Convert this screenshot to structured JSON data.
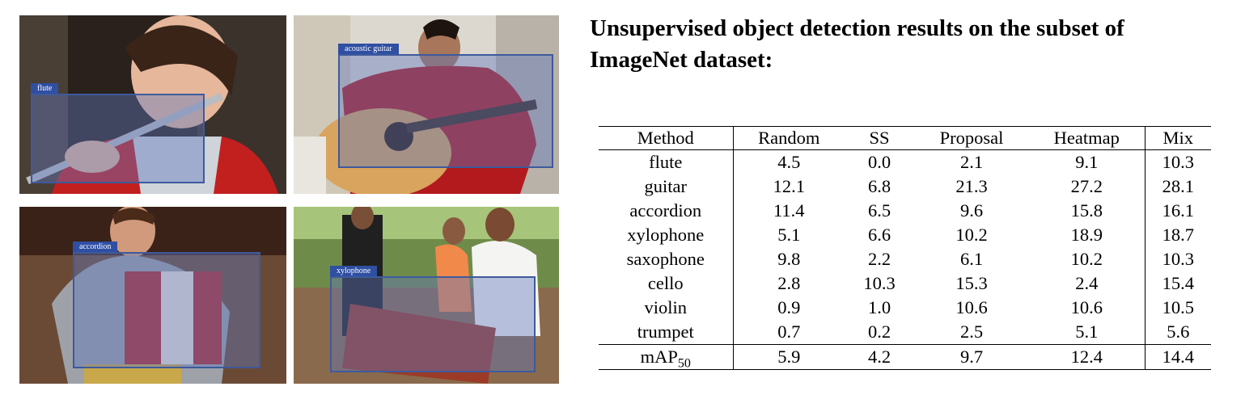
{
  "figures": [
    {
      "id": "flute",
      "label": "flute"
    },
    {
      "id": "guitar",
      "label": "acoustic guitar"
    },
    {
      "id": "accordion",
      "label": "accordion"
    },
    {
      "id": "xylophone",
      "label": "xylophone"
    }
  ],
  "title": "Unsupervised object detection results on the subset of ImageNet dataset:",
  "table": {
    "headers": [
      "Method",
      "Random",
      "SS",
      "Proposal",
      "Heatmap",
      "Mix"
    ],
    "rows": [
      [
        "flute",
        "4.5",
        "0.0",
        "2.1",
        "9.1",
        "10.3"
      ],
      [
        "guitar",
        "12.1",
        "6.8",
        "21.3",
        "27.2",
        "28.1"
      ],
      [
        "accordion",
        "11.4",
        "6.5",
        "9.6",
        "15.8",
        "16.1"
      ],
      [
        "xylophone",
        "5.1",
        "6.6",
        "10.2",
        "18.9",
        "18.7"
      ],
      [
        "saxophone",
        "9.8",
        "2.2",
        "6.1",
        "10.2",
        "10.3"
      ],
      [
        "cello",
        "2.8",
        "10.3",
        "15.3",
        "2.4",
        "15.4"
      ],
      [
        "violin",
        "0.9",
        "1.0",
        "10.6",
        "10.6",
        "10.5"
      ],
      [
        "trumpet",
        "0.7",
        "0.2",
        "2.5",
        "5.1",
        "5.6"
      ]
    ],
    "map_row": {
      "label": "mAP",
      "label_sub": "50",
      "values": [
        "5.9",
        "4.2",
        "9.7",
        "12.4",
        "14.4"
      ]
    }
  },
  "colors": {
    "bbox_fill": "#5f78be",
    "bbox_border": "#3e5a9c",
    "label_bg": "#2f4fa3"
  }
}
